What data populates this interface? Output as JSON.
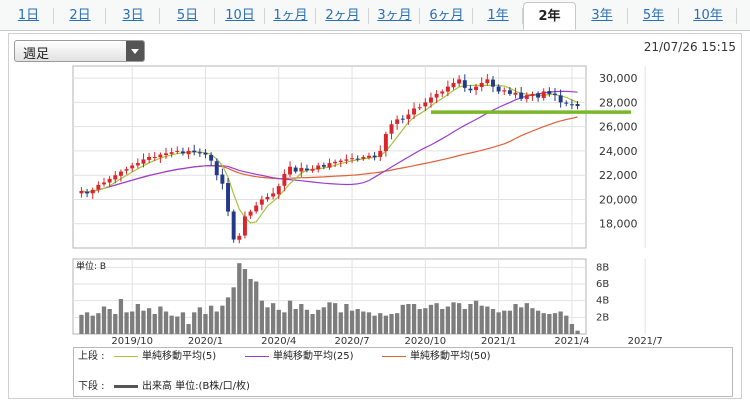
{
  "tabs": [
    {
      "label": "1日",
      "active": false
    },
    {
      "label": "2日",
      "active": false
    },
    {
      "label": "3日",
      "active": false
    },
    {
      "label": "5日",
      "active": false
    },
    {
      "label": "10日",
      "active": false
    },
    {
      "label": "1ヶ月",
      "active": false
    },
    {
      "label": "2ヶ月",
      "active": false
    },
    {
      "label": "3ヶ月",
      "active": false
    },
    {
      "label": "6ヶ月",
      "active": false
    },
    {
      "label": "1年",
      "active": false
    },
    {
      "label": "2年",
      "active": true
    },
    {
      "label": "3年",
      "active": false
    },
    {
      "label": "5年",
      "active": false
    },
    {
      "label": "10年",
      "active": false
    }
  ],
  "period_select": {
    "value": "週足"
  },
  "timestamp": "21/07/26 15:15",
  "colors": {
    "tab_link": "#2a6fb6",
    "candle_up": "#d9262b",
    "candle_down": "#233a8a",
    "ma5": "#a5c53b",
    "ma25": "#9a3fd0",
    "ma50": "#e0603a",
    "support_line": "#78b82a",
    "volume": "#7d7d7d"
  },
  "legend": {
    "upper_label": "上段 :",
    "lower_label": "下段 :",
    "ma5": "単純移動平均(5)",
    "ma25": "単純移動平均(25)",
    "ma50": "単純移動平均(50)",
    "volume": "出来高 単位:(B株/口/枚)"
  },
  "chart_data": {
    "type": "candlestick",
    "interval": "weekly",
    "x_tick_labels": [
      "2019/10",
      "2020/1",
      "2020/4",
      "2020/7",
      "2020/10",
      "2021/1",
      "2021/4",
      "2021/7"
    ],
    "x_tick_weeks": [
      9,
      22,
      35,
      48,
      61,
      74,
      87,
      100
    ],
    "price_axis": {
      "ylim": [
        16000,
        31000
      ],
      "ticks": [
        18000,
        20000,
        22000,
        24000,
        26000,
        28000,
        30000
      ],
      "tick_labels": [
        "18,000",
        "20,000",
        "22,000",
        "24,000",
        "26,000",
        "28,000",
        "30,000"
      ]
    },
    "support_line_value": 27200,
    "closes": [
      20700,
      20500,
      20800,
      21200,
      21400,
      21700,
      22000,
      22300,
      22500,
      22800,
      23000,
      23300,
      23500,
      23500,
      23700,
      23800,
      23900,
      24000,
      23800,
      24000,
      23900,
      23800,
      23700,
      23200,
      22000,
      21300,
      19000,
      16700,
      17000,
      18600,
      19000,
      19500,
      20000,
      20200,
      20500,
      21100,
      22100,
      22700,
      22300,
      22600,
      22400,
      22500,
      22800,
      22700,
      23000,
      23100,
      23200,
      23300,
      23400,
      23300,
      23500,
      23600,
      23500,
      24000,
      25400,
      26200,
      26600,
      26600,
      27000,
      27500,
      27600,
      28000,
      28400,
      28700,
      28900,
      29300,
      29600,
      29900,
      29200,
      29000,
      29300,
      29600,
      29900,
      29300,
      28900,
      29000,
      28700,
      28800,
      28300,
      28600,
      28700,
      28400,
      28900,
      28700,
      28600,
      28000,
      27900,
      27800,
      27700
    ],
    "volume_axis": {
      "unit": "単位: B",
      "ylim": [
        0,
        9
      ],
      "ticks": [
        2,
        4,
        6,
        8
      ],
      "tick_labels": [
        "2B",
        "4B",
        "6B",
        "8B"
      ]
    },
    "volumes": [
      2.3,
      2.6,
      2.2,
      2.5,
      3.3,
      3.0,
      2.4,
      4.2,
      2.6,
      2.7,
      3.6,
      2.8,
      3.1,
      2.4,
      3.3,
      2.7,
      2.2,
      2.1,
      2.6,
      1.2,
      2.6,
      3.2,
      2.4,
      3.4,
      2.7,
      3.4,
      4.4,
      5.6,
      8.5,
      7.8,
      6.6,
      6.3,
      4.0,
      3.2,
      3.7,
      2.9,
      2.6,
      4.0,
      3.0,
      3.6,
      2.9,
      2.4,
      2.9,
      3.2,
      3.8,
      3.7,
      2.6,
      3.6,
      2.8,
      3.0,
      2.7,
      2.6,
      2.2,
      2.5,
      2.2,
      2.4,
      2.5,
      3.5,
      3.6,
      3.6,
      3.0,
      3.1,
      3.5,
      3.7,
      3.0,
      3.3,
      3.8,
      3.7,
      3.0,
      3.6,
      4.0,
      3.4,
      3.3,
      3.0,
      2.6,
      2.8,
      2.8,
      3.6,
      3.2,
      3.7,
      3.1,
      2.8,
      2.5,
      2.4,
      2.5,
      2.7,
      2.2,
      1.2,
      0.4
    ],
    "x_labels_visible": true
  }
}
